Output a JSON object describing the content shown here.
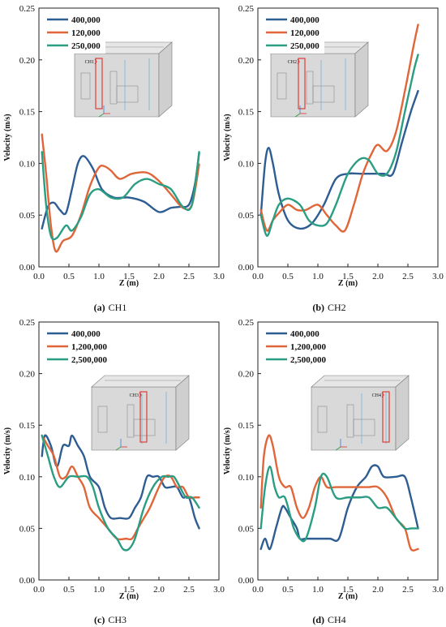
{
  "chart_data": [
    {
      "type": "line",
      "panel_caption": {
        "letter": "(a)",
        "text": "CH1"
      },
      "inset_label": "CH1",
      "xlabel": "Z (m)",
      "ylabel": "Velocity  (m/s)",
      "xlim": [
        0.0,
        3.0
      ],
      "ylim": [
        0.0,
        0.25
      ],
      "xticks": [
        "0.0",
        "0.5",
        "1.0",
        "1.5",
        "2.0",
        "2.5",
        "3.0"
      ],
      "yticks": [
        "0.00",
        "0.05",
        "0.10",
        "0.15",
        "0.20",
        "0.25"
      ],
      "legend_position": "top-left",
      "series": [
        {
          "name": "400,000",
          "color": "#2e5d92",
          "x": [
            0.05,
            0.15,
            0.25,
            0.35,
            0.45,
            0.55,
            0.65,
            0.75,
            0.9,
            1.05,
            1.25,
            1.5,
            1.75,
            2.0,
            2.2,
            2.35,
            2.5,
            2.6,
            2.67
          ],
          "y": [
            0.037,
            0.058,
            0.062,
            0.055,
            0.052,
            0.075,
            0.1,
            0.107,
            0.095,
            0.075,
            0.067,
            0.067,
            0.063,
            0.053,
            0.057,
            0.058,
            0.06,
            0.08,
            0.11
          ]
        },
        {
          "name": "120,000",
          "color": "#e0663a",
          "x": [
            0.05,
            0.12,
            0.2,
            0.28,
            0.4,
            0.55,
            0.7,
            0.85,
            1.0,
            1.1,
            1.2,
            1.35,
            1.55,
            1.8,
            2.0,
            2.2,
            2.4,
            2.55,
            2.67
          ],
          "y": [
            0.128,
            0.09,
            0.04,
            0.015,
            0.025,
            0.03,
            0.05,
            0.078,
            0.096,
            0.097,
            0.093,
            0.085,
            0.09,
            0.091,
            0.083,
            0.07,
            0.057,
            0.06,
            0.099
          ]
        },
        {
          "name": "250,000",
          "color": "#2a9d82",
          "x": [
            0.05,
            0.12,
            0.2,
            0.3,
            0.45,
            0.55,
            0.7,
            0.85,
            1.0,
            1.2,
            1.4,
            1.6,
            1.8,
            2.0,
            2.2,
            2.4,
            2.55,
            2.67
          ],
          "y": [
            0.111,
            0.06,
            0.03,
            0.028,
            0.04,
            0.035,
            0.048,
            0.07,
            0.075,
            0.067,
            0.067,
            0.08,
            0.085,
            0.08,
            0.075,
            0.058,
            0.06,
            0.111
          ]
        }
      ]
    },
    {
      "type": "line",
      "panel_caption": {
        "letter": "(b)",
        "text": "CH2"
      },
      "inset_label": "CH2",
      "xlabel": "Z (m)",
      "ylabel": "Velocity  (m/s)",
      "xlim": [
        0.0,
        3.0
      ],
      "ylim": [
        0.0,
        0.25
      ],
      "xticks": [
        "0.0",
        "0.5",
        "1.0",
        "1.5",
        "2.0",
        "2.5",
        "3.0"
      ],
      "yticks": [
        "0.00",
        "0.05",
        "0.10",
        "0.15",
        "0.20",
        "0.25"
      ],
      "legend_position": "top-left",
      "series": [
        {
          "name": "400,000",
          "color": "#2e5d92",
          "x": [
            0.05,
            0.12,
            0.18,
            0.25,
            0.35,
            0.5,
            0.7,
            0.9,
            1.1,
            1.3,
            1.5,
            1.7,
            1.9,
            2.1,
            2.25,
            2.4,
            2.55,
            2.67
          ],
          "y": [
            0.05,
            0.1,
            0.115,
            0.1,
            0.07,
            0.045,
            0.037,
            0.042,
            0.06,
            0.085,
            0.09,
            0.09,
            0.09,
            0.09,
            0.09,
            0.12,
            0.15,
            0.17
          ]
        },
        {
          "name": "120,000",
          "color": "#e0663a",
          "x": [
            0.05,
            0.15,
            0.25,
            0.35,
            0.5,
            0.65,
            0.8,
            1.0,
            1.15,
            1.3,
            1.45,
            1.6,
            1.75,
            1.9,
            2.0,
            2.15,
            2.3,
            2.45,
            2.6,
            2.67
          ],
          "y": [
            0.055,
            0.035,
            0.045,
            0.052,
            0.06,
            0.055,
            0.055,
            0.06,
            0.05,
            0.04,
            0.035,
            0.06,
            0.09,
            0.11,
            0.118,
            0.112,
            0.13,
            0.17,
            0.215,
            0.234
          ]
        },
        {
          "name": "250,000",
          "color": "#2a9d82",
          "x": [
            0.05,
            0.15,
            0.25,
            0.35,
            0.5,
            0.7,
            0.85,
            1.0,
            1.15,
            1.3,
            1.5,
            1.7,
            1.85,
            2.0,
            2.15,
            2.3,
            2.45,
            2.6,
            2.67
          ],
          "y": [
            0.05,
            0.03,
            0.045,
            0.06,
            0.066,
            0.06,
            0.045,
            0.04,
            0.042,
            0.06,
            0.09,
            0.104,
            0.103,
            0.09,
            0.09,
            0.11,
            0.15,
            0.19,
            0.205
          ]
        }
      ]
    },
    {
      "type": "line",
      "panel_caption": {
        "letter": "(c)",
        "text": "CH3"
      },
      "inset_label": "CH3",
      "xlabel": "Z (m)",
      "ylabel": "Velocity  (m/s)",
      "xlim": [
        0.0,
        3.0
      ],
      "ylim": [
        0.0,
        0.25
      ],
      "xticks": [
        "0.0",
        "0.5",
        "1.0",
        "1.5",
        "2.0",
        "2.5",
        "3.0"
      ],
      "yticks": [
        "0.00",
        "0.05",
        "0.10",
        "0.15",
        "0.20",
        "0.25"
      ],
      "legend_position": "top-left",
      "series": [
        {
          "name": "400,000",
          "color": "#2e5d92",
          "x": [
            0.05,
            0.1,
            0.2,
            0.3,
            0.4,
            0.5,
            0.55,
            0.65,
            0.75,
            0.85,
            1.0,
            1.1,
            1.2,
            1.35,
            1.5,
            1.6,
            1.7,
            1.8,
            1.9,
            2.0,
            2.1,
            2.2,
            2.3,
            2.4,
            2.5,
            2.6,
            2.67
          ],
          "y": [
            0.12,
            0.14,
            0.13,
            0.11,
            0.13,
            0.13,
            0.14,
            0.13,
            0.12,
            0.1,
            0.09,
            0.07,
            0.06,
            0.06,
            0.06,
            0.07,
            0.08,
            0.1,
            0.1,
            0.1,
            0.09,
            0.09,
            0.09,
            0.08,
            0.08,
            0.06,
            0.05
          ]
        },
        {
          "name": "1,200,000",
          "color": "#e0663a",
          "x": [
            0.05,
            0.15,
            0.25,
            0.35,
            0.45,
            0.55,
            0.65,
            0.75,
            0.85,
            1.0,
            1.15,
            1.3,
            1.45,
            1.55,
            1.65,
            1.75,
            1.85,
            2.0,
            2.1,
            2.2,
            2.3,
            2.4,
            2.5,
            2.6,
            2.67
          ],
          "y": [
            0.14,
            0.13,
            0.12,
            0.1,
            0.1,
            0.11,
            0.1,
            0.09,
            0.07,
            0.06,
            0.05,
            0.04,
            0.04,
            0.04,
            0.05,
            0.06,
            0.07,
            0.09,
            0.1,
            0.1,
            0.09,
            0.09,
            0.08,
            0.08,
            0.08
          ]
        },
        {
          "name": "2,500,000",
          "color": "#2a9d82",
          "x": [
            0.05,
            0.15,
            0.25,
            0.35,
            0.5,
            0.65,
            0.8,
            0.9,
            1.0,
            1.15,
            1.3,
            1.4,
            1.5,
            1.6,
            1.75,
            1.9,
            2.05,
            2.15,
            2.25,
            2.35,
            2.45,
            2.55,
            2.67
          ],
          "y": [
            0.14,
            0.12,
            0.1,
            0.09,
            0.1,
            0.1,
            0.1,
            0.09,
            0.07,
            0.05,
            0.04,
            0.03,
            0.03,
            0.04,
            0.07,
            0.09,
            0.1,
            0.1,
            0.1,
            0.09,
            0.08,
            0.08,
            0.07
          ]
        }
      ]
    },
    {
      "type": "line",
      "panel_caption": {
        "letter": "(d)",
        "text": "CH4"
      },
      "inset_label": "CH4",
      "xlabel": "Z (m)",
      "ylabel": "Velocity  (m/s)",
      "xlim": [
        0.0,
        3.0
      ],
      "ylim": [
        0.0,
        0.25
      ],
      "xticks": [
        "0.0",
        "0.5",
        "1.0",
        "1.5",
        "2.0",
        "2.5",
        "3.0"
      ],
      "yticks": [
        "0.00",
        "0.05",
        "0.10",
        "0.15",
        "0.20",
        "0.25"
      ],
      "legend_position": "top-left",
      "series": [
        {
          "name": "400,000",
          "color": "#2e5d92",
          "x": [
            0.05,
            0.12,
            0.2,
            0.3,
            0.4,
            0.45,
            0.55,
            0.65,
            0.7,
            0.8,
            1.0,
            1.2,
            1.35,
            1.5,
            1.65,
            1.8,
            1.9,
            2.0,
            2.1,
            2.3,
            2.45,
            2.55,
            2.67
          ],
          "y": [
            0.03,
            0.04,
            0.03,
            0.05,
            0.07,
            0.07,
            0.06,
            0.05,
            0.04,
            0.04,
            0.04,
            0.04,
            0.04,
            0.07,
            0.09,
            0.1,
            0.11,
            0.11,
            0.1,
            0.1,
            0.1,
            0.08,
            0.05
          ]
        },
        {
          "name": "1,200,000",
          "color": "#e0663a",
          "x": [
            0.05,
            0.1,
            0.18,
            0.25,
            0.35,
            0.45,
            0.55,
            0.65,
            0.75,
            0.85,
            0.95,
            1.05,
            1.15,
            1.3,
            1.5,
            1.7,
            1.85,
            2.0,
            2.15,
            2.3,
            2.45,
            2.55,
            2.67
          ],
          "y": [
            0.07,
            0.12,
            0.14,
            0.13,
            0.1,
            0.09,
            0.09,
            0.07,
            0.06,
            0.07,
            0.09,
            0.1,
            0.09,
            0.09,
            0.09,
            0.09,
            0.09,
            0.09,
            0.08,
            0.06,
            0.05,
            0.03,
            0.03
          ]
        },
        {
          "name": "2,500,000",
          "color": "#2a9d82",
          "x": [
            0.05,
            0.12,
            0.2,
            0.28,
            0.35,
            0.45,
            0.55,
            0.6,
            0.7,
            0.8,
            0.95,
            1.05,
            1.15,
            1.3,
            1.5,
            1.7,
            1.85,
            2.0,
            2.15,
            2.3,
            2.45,
            2.55,
            2.67
          ],
          "y": [
            0.05,
            0.09,
            0.11,
            0.09,
            0.08,
            0.08,
            0.06,
            0.05,
            0.04,
            0.04,
            0.07,
            0.1,
            0.1,
            0.08,
            0.08,
            0.08,
            0.08,
            0.07,
            0.07,
            0.06,
            0.05,
            0.05,
            0.05
          ]
        }
      ]
    }
  ]
}
